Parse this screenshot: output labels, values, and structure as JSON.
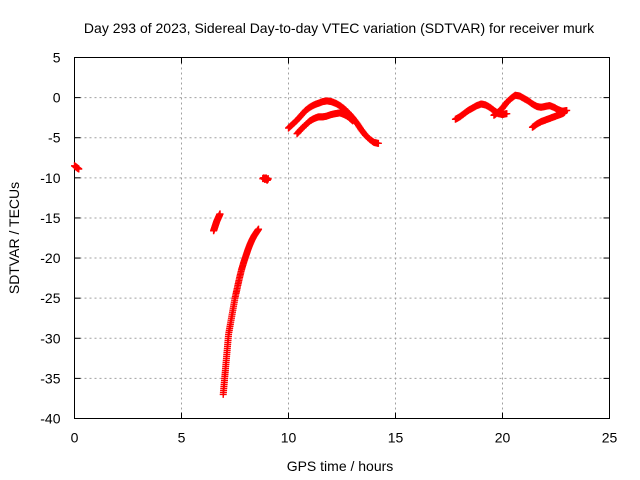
{
  "chart_data": {
    "type": "scatter",
    "title": "Day 293 of 2023, Sidereal Day-to-day VTEC variation (SDTVAR) for receiver murk",
    "xlabel": "GPS time / hours",
    "ylabel": "SDTVAR / TECUs",
    "xlim": [
      0,
      25
    ],
    "ylim": [
      -40,
      5
    ],
    "xticks": [
      0,
      5,
      10,
      15,
      20,
      25
    ],
    "yticks": [
      5,
      0,
      -5,
      -10,
      -15,
      -20,
      -25,
      -30,
      -35,
      -40
    ],
    "grid": true,
    "marker": "plus",
    "color": "#ff0000",
    "series": [
      {
        "name": "SDTVAR",
        "segments": [
          {
            "x": [
              0.0,
              0.1,
              0.2
            ],
            "y": [
              -8.5,
              -8.7,
              -8.9
            ]
          },
          {
            "x": [
              6.5,
              6.55,
              6.6,
              6.65,
              6.7,
              6.75,
              6.8
            ],
            "y": [
              -16.6,
              -16.2,
              -15.8,
              -15.4,
              -15.1,
              -14.8,
              -14.5
            ]
          },
          {
            "x": [
              8.8,
              8.85,
              8.9,
              8.95,
              9.0,
              9.05
            ],
            "y": [
              -10.1,
              -10.0,
              -10.2,
              -10.0,
              -10.3,
              -10.1
            ]
          },
          {
            "x": [
              6.95,
              7.0,
              7.05,
              7.1,
              7.15,
              7.2,
              7.3,
              7.4,
              7.5,
              7.6,
              7.7,
              7.8,
              7.9,
              8.0,
              8.1,
              8.2,
              8.3,
              8.4,
              8.5,
              8.6
            ],
            "y": [
              -37.0,
              -35.5,
              -34.0,
              -32.5,
              -31.0,
              -29.5,
              -28.0,
              -26.5,
              -25.0,
              -23.8,
              -22.6,
              -21.5,
              -20.6,
              -19.8,
              -19.0,
              -18.3,
              -17.7,
              -17.2,
              -16.8,
              -16.4
            ]
          },
          {
            "x": [
              10.0,
              10.2,
              10.4,
              10.6,
              10.8,
              11.0,
              11.2,
              11.4,
              11.6,
              11.8,
              12.0,
              12.2,
              12.4,
              12.6,
              12.8,
              13.0,
              13.2,
              13.4,
              13.6,
              13.8,
              14.0,
              14.2
            ],
            "y": [
              -3.8,
              -3.3,
              -2.8,
              -2.2,
              -1.6,
              -1.2,
              -0.9,
              -0.7,
              -0.5,
              -0.4,
              -0.5,
              -0.7,
              -1.0,
              -1.4,
              -1.9,
              -2.5,
              -3.2,
              -4.0,
              -4.7,
              -5.2,
              -5.6,
              -5.7
            ]
          },
          {
            "x": [
              10.4,
              10.6,
              10.8,
              11.0,
              11.2,
              11.4,
              11.6,
              11.8,
              12.0,
              12.2,
              12.4,
              12.6,
              12.8,
              13.0
            ],
            "y": [
              -4.5,
              -3.9,
              -3.4,
              -2.9,
              -2.6,
              -2.4,
              -2.4,
              -2.3,
              -2.1,
              -2.0,
              -1.9,
              -2.1,
              -2.4,
              -2.9
            ]
          },
          {
            "x": [
              17.8,
              18.0,
              18.2,
              18.4,
              18.6,
              18.8,
              19.0,
              19.2,
              19.4,
              19.6,
              19.8,
              20.0,
              20.2
            ],
            "y": [
              -2.7,
              -2.4,
              -2.0,
              -1.6,
              -1.3,
              -1.0,
              -0.8,
              -0.9,
              -1.2,
              -1.6,
              -2.0,
              -2.1,
              -2.0
            ]
          },
          {
            "x": [
              19.6,
              19.8,
              20.0,
              20.2,
              20.4,
              20.6,
              20.8,
              21.0,
              21.2,
              21.4,
              21.6,
              21.8,
              22.0,
              22.2,
              22.4,
              22.6,
              22.8,
              23.0
            ],
            "y": [
              -2.2,
              -1.8,
              -1.3,
              -0.6,
              -0.1,
              0.3,
              0.2,
              -0.1,
              -0.4,
              -0.8,
              -1.1,
              -1.2,
              -1.1,
              -1.0,
              -1.2,
              -1.5,
              -1.7,
              -1.6
            ]
          },
          {
            "x": [
              21.4,
              21.6,
              21.8,
              22.0,
              22.2,
              22.4,
              22.6,
              22.8,
              22.9
            ],
            "y": [
              -3.7,
              -3.3,
              -3.0,
              -2.8,
              -2.6,
              -2.4,
              -2.2,
              -2.0,
              -1.8
            ]
          }
        ]
      }
    ]
  }
}
